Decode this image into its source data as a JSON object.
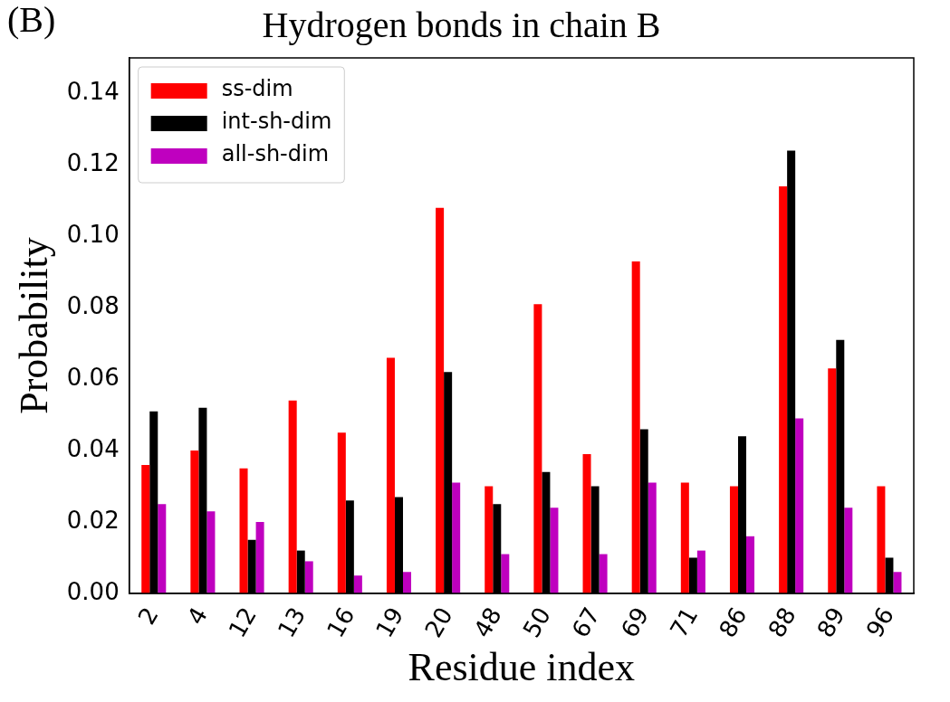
{
  "chart_data": {
    "type": "bar",
    "title": "Hydrogen bonds in chain B",
    "xlabel": "Residue index",
    "ylabel": "Probability",
    "annotations": [
      "(B)"
    ],
    "categories": [
      "2",
      "4",
      "12",
      "13",
      "16",
      "19",
      "20",
      "48",
      "50",
      "67",
      "69",
      "71",
      "86",
      "88",
      "89",
      "96"
    ],
    "series": [
      {
        "name": "ss-dim",
        "color": "#ff0000",
        "values": [
          0.036,
          0.04,
          0.035,
          0.054,
          0.045,
          0.066,
          0.108,
          0.03,
          0.081,
          0.039,
          0.093,
          0.031,
          0.03,
          0.114,
          0.063,
          0.03
        ]
      },
      {
        "name": "int-sh-dim",
        "color": "#000000",
        "values": [
          0.051,
          0.052,
          0.015,
          0.012,
          0.026,
          0.027,
          0.062,
          0.025,
          0.034,
          0.03,
          0.046,
          0.01,
          0.044,
          0.124,
          0.071,
          0.01
        ]
      },
      {
        "name": "all-sh-dim",
        "color": "#bf00bf",
        "values": [
          0.025,
          0.023,
          0.02,
          0.009,
          0.005,
          0.006,
          0.031,
          0.011,
          0.024,
          0.011,
          0.031,
          0.012,
          0.016,
          0.049,
          0.024,
          0.006
        ]
      }
    ],
    "ylim": [
      0,
      0.15
    ],
    "yticks": [
      {
        "value": 0,
        "label": "0.00"
      },
      0.02,
      0.04,
      0.06,
      0.08,
      {
        "value": 0.1,
        "label": "0.10"
      },
      0.12,
      0.14
    ],
    "grid": false,
    "legend": "top left"
  }
}
